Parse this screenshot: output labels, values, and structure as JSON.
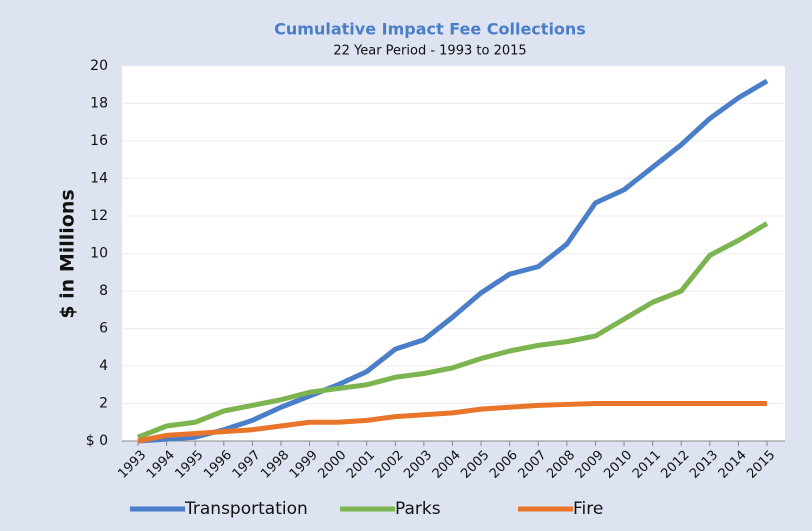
{
  "chart_data": {
    "type": "line",
    "title": "Cumulative Impact Fee Collections",
    "subtitle": "22 Year Period - 1993 to 2015",
    "y_label": "$ in Millions",
    "categories": [
      "1993",
      "1994",
      "1995",
      "1996",
      "1997",
      "1998",
      "1999",
      "2000",
      "2001",
      "2002",
      "2003",
      "2004",
      "2005",
      "2006",
      "2007",
      "2008",
      "2009",
      "2010",
      "2011",
      "2012",
      "2013",
      "2014",
      "2015"
    ],
    "series": [
      {
        "name": "Transportation",
        "color": "#4a7ec8",
        "values": [
          0,
          0.1,
          0.2,
          0.6,
          1.1,
          1.8,
          2.4,
          3.0,
          3.7,
          4.9,
          5.4,
          6.6,
          7.9,
          8.9,
          9.3,
          10.5,
          12.7,
          13.4,
          14.6,
          15.8,
          17.2,
          18.3,
          19.2
        ]
      },
      {
        "name": "Parks",
        "color": "#7cb450",
        "values": [
          0.2,
          0.8,
          1.0,
          1.6,
          1.9,
          2.2,
          2.6,
          2.8,
          3.0,
          3.4,
          3.6,
          3.9,
          4.4,
          4.8,
          5.1,
          5.3,
          5.6,
          6.5,
          7.4,
          8.0,
          9.9,
          10.7,
          11.6
        ]
      },
      {
        "name": "Fire",
        "color": "#e8752a",
        "values": [
          0,
          0.3,
          0.4,
          0.5,
          0.6,
          0.8,
          1.0,
          1.0,
          1.1,
          1.3,
          1.4,
          1.5,
          1.7,
          1.8,
          1.9,
          1.95,
          2.0,
          2.0,
          2.0,
          2.0,
          2.0,
          2.0,
          2.0
        ]
      }
    ],
    "ylim": [
      0,
      20
    ],
    "yticks": [
      {
        "value": 0,
        "label": "$ 0"
      },
      2,
      4,
      6,
      8,
      10,
      12,
      14,
      16,
      18,
      20
    ],
    "grid": true,
    "legend": "bottom"
  }
}
